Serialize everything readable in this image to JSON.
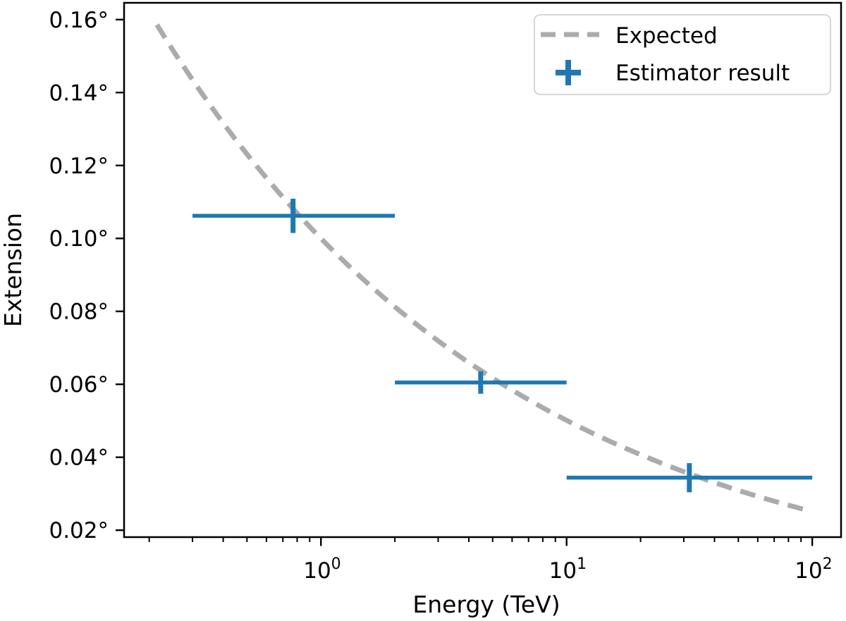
{
  "figure": {
    "background": "#ffffff",
    "axis_color": "#000000"
  },
  "chart_data": {
    "type": "line",
    "title": "",
    "xlabel": "Energy (TeV)",
    "ylabel": "Extension",
    "x_scale": "log",
    "y_scale": "linear",
    "grid": false,
    "xlim_tev": [
      0.158,
      131
    ],
    "ylim_deg": [
      0.0181,
      0.1646
    ],
    "x_major_ticks": [
      {
        "value": 1,
        "base": "10",
        "exponent": "0"
      },
      {
        "value": 10,
        "base": "10",
        "exponent": "1"
      },
      {
        "value": 100,
        "base": "10",
        "exponent": "2"
      }
    ],
    "x_minor_ticks": [
      0.2,
      0.3,
      0.4,
      0.5,
      0.6,
      0.7,
      0.8,
      0.9,
      2,
      3,
      4,
      5,
      6,
      7,
      8,
      9,
      20,
      30,
      40,
      50,
      60,
      70,
      80,
      90
    ],
    "y_ticks": [
      {
        "value": 0.02,
        "label": "0.02°"
      },
      {
        "value": 0.04,
        "label": "0.04°"
      },
      {
        "value": 0.06,
        "label": "0.06°"
      },
      {
        "value": 0.08,
        "label": "0.08°"
      },
      {
        "value": 0.1,
        "label": "0.10°"
      },
      {
        "value": 0.12,
        "label": "0.12°"
      },
      {
        "value": 0.14,
        "label": "0.14°"
      },
      {
        "value": 0.16,
        "label": "0.16°"
      }
    ],
    "series": [
      {
        "name": "Expected",
        "type": "line",
        "line_style": "dashed",
        "color": "#ababab",
        "model": "extension_deg = amplitude_deg * (E_TeV ^ power_law_index)",
        "amplitude_deg": 0.1,
        "power_law_index": -0.3,
        "energy_range_tev": [
          0.215,
          97
        ],
        "reference_points": [
          {
            "energy_tev": 0.215,
            "extension_deg": 0.159
          },
          {
            "energy_tev": 1.0,
            "extension_deg": 0.1
          },
          {
            "energy_tev": 10.0,
            "extension_deg": 0.05
          },
          {
            "energy_tev": 97.0,
            "extension_deg": 0.025
          }
        ]
      },
      {
        "name": "Estimator result",
        "type": "errorbar",
        "marker": "plus",
        "color": "#1f77b4",
        "points": [
          {
            "energy_tev": 0.77,
            "energy_lo_tev": 0.3,
            "energy_hi_tev": 2.0,
            "extension_deg": 0.1062,
            "extension_err_deg": 0.0047
          },
          {
            "energy_tev": 4.47,
            "energy_lo_tev": 2.0,
            "energy_hi_tev": 10.0,
            "extension_deg": 0.0605,
            "extension_err_deg": 0.0031
          },
          {
            "energy_tev": 31.6,
            "energy_lo_tev": 10.0,
            "energy_hi_tev": 100.0,
            "extension_deg": 0.0344,
            "extension_err_deg": 0.004
          }
        ]
      }
    ],
    "legend": {
      "position": "upper right",
      "border_color": "#cccccc",
      "entries": [
        "Expected",
        "Estimator result"
      ]
    }
  }
}
